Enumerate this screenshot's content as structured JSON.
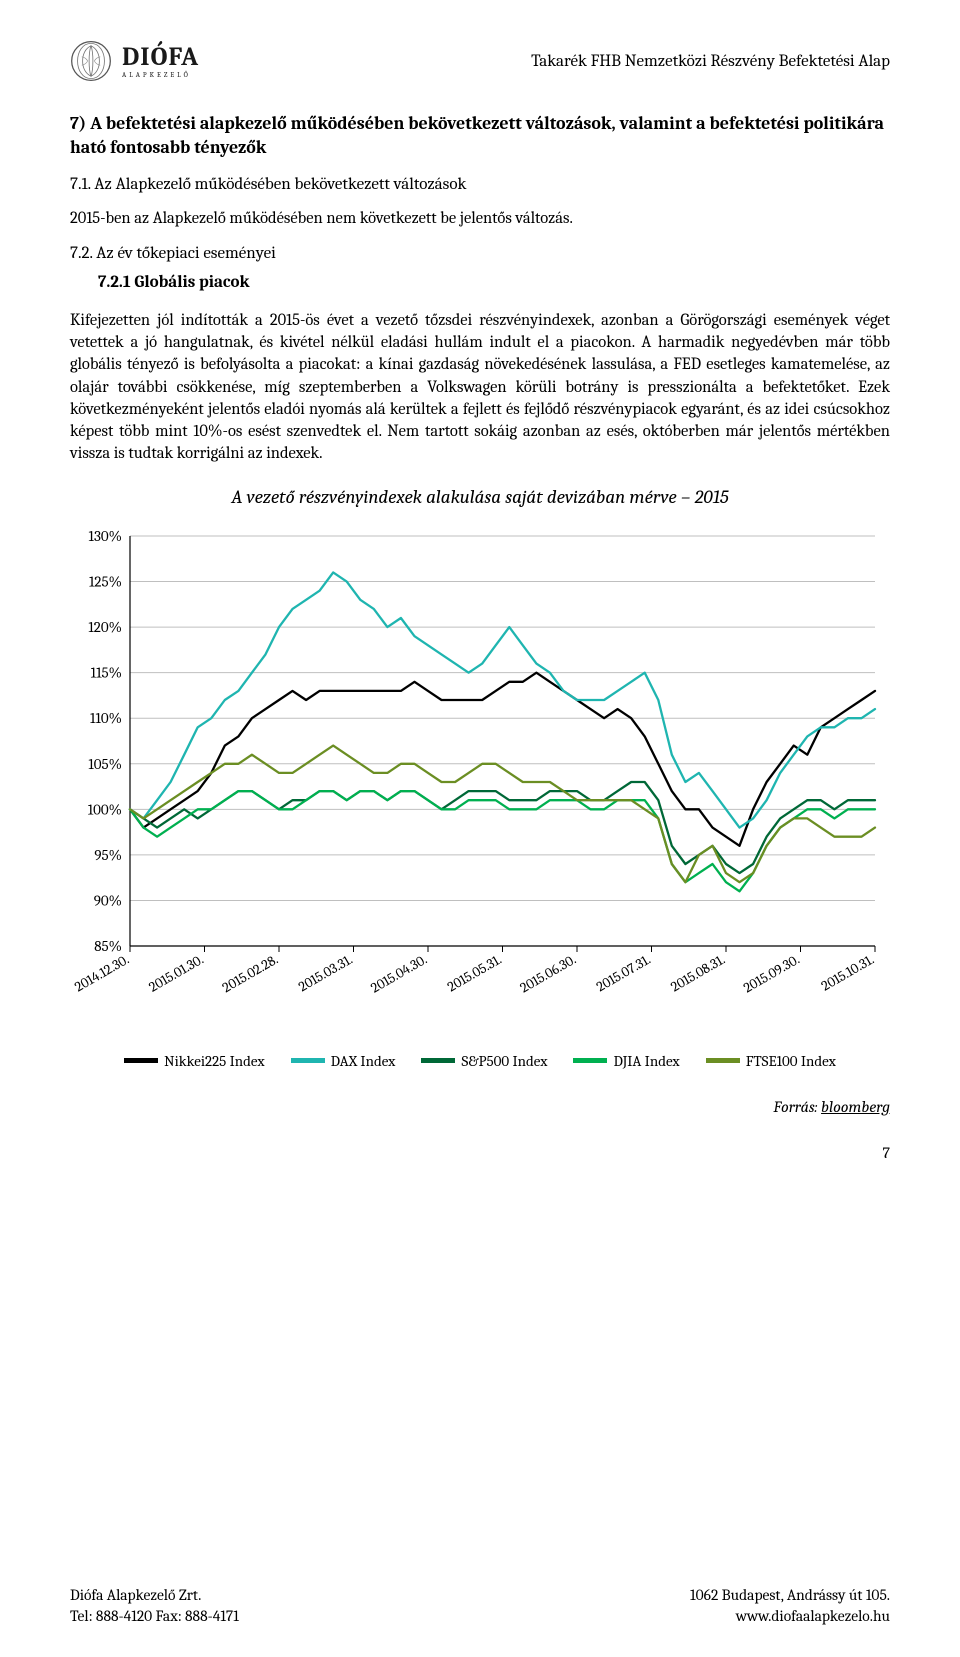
{
  "header": {
    "logo_main": "DIÓFA",
    "logo_sub": "ALAPKEZELŐ",
    "doc_title": "Takarék FHB Nemzetközi Részvény Befektetési Alap"
  },
  "sections": {
    "sec7_heading": "7) A befektetési alapkezelő működésében bekövetkezett változások, valamint a befektetési politikára ható fontosabb tényezők",
    "sec71_heading": "7.1. Az Alapkezelő működésében bekövetkezett változások",
    "sec71_body": "2015-ben az Alapkezelő működésében nem következett be jelentős változás.",
    "sec72_heading": "7.2. Az év tőkepiaci eseményei",
    "sec721_heading": "7.2.1 Globális piacok",
    "sec721_body": "Kifejezetten jól indították a 2015-ös évet a vezető tőzsdei részvényindexek, azonban a Görögországi események véget vetettek a jó hangulatnak, és kivétel nélkül eladási hullám indult el a piacokon. A harmadik negyedévben már több globális tényező is befolyásolta a piacokat: a kínai gazdaság növekedésének lassulása, a FED esetleges kamatemelése, az olajár további csökkenése, míg szeptemberben a Volkswagen körüli botrány is presszionálta a befektetőket. Ezek következményeként jelentős eladói nyomás alá kerültek a fejlett és fejlődő részvénypiacok egyaránt, és az idei csúcsokhoz képest több mint 10%-os esést szenvedtek el. Nem tartott sokáig azonban az esés, októberben már jelentős mértékben vissza is tudtak korrigálni az indexek."
  },
  "chart": {
    "title": "A vezető részvényindexek alakulása saját devizában mérve – 2015",
    "type": "line",
    "ylim": [
      85,
      130
    ],
    "ytick_step": 5,
    "ytick_format": "percent",
    "yticks": [
      "85%",
      "90%",
      "95%",
      "100%",
      "105%",
      "110%",
      "115%",
      "120%",
      "125%",
      "130%"
    ],
    "x_labels": [
      "2014.12.30.",
      "2015.01.30.",
      "2015.02.28.",
      "2015.03.31.",
      "2015.04.30.",
      "2015.05.31.",
      "2015.06.30.",
      "2015.07.31.",
      "2015.08.31.",
      "2015.09.30.",
      "2015.10.31."
    ],
    "x_label_rotation_deg": -30,
    "grid_color": "#bfbfbf",
    "axis_color": "#000000",
    "background_color": "#ffffff",
    "line_width": 2.3,
    "series": [
      {
        "name": "Nikkei225 Index",
        "color": "#000000",
        "values": [
          100,
          98,
          99,
          100,
          101,
          102,
          104,
          107,
          108,
          110,
          111,
          112,
          113,
          112,
          113,
          113,
          113,
          113,
          113,
          113,
          113,
          114,
          113,
          112,
          112,
          112,
          112,
          113,
          114,
          114,
          115,
          114,
          113,
          112,
          111,
          110,
          111,
          110,
          108,
          105,
          102,
          100,
          100,
          98,
          97,
          96,
          100,
          103,
          105,
          107,
          106,
          109,
          110,
          111,
          112,
          113
        ]
      },
      {
        "name": "DAX Index",
        "color": "#1fb5b0",
        "values": [
          100,
          99,
          101,
          103,
          106,
          109,
          110,
          112,
          113,
          115,
          117,
          120,
          122,
          123,
          124,
          126,
          125,
          123,
          122,
          120,
          121,
          119,
          118,
          117,
          116,
          115,
          116,
          118,
          120,
          118,
          116,
          115,
          113,
          112,
          112,
          112,
          113,
          114,
          115,
          112,
          106,
          103,
          104,
          102,
          100,
          98,
          99,
          101,
          104,
          106,
          108,
          109,
          109,
          110,
          110,
          111
        ]
      },
      {
        "name": "S&P500 Index",
        "color": "#006837",
        "values": [
          100,
          99,
          98,
          99,
          100,
          99,
          100,
          101,
          102,
          102,
          101,
          100,
          101,
          101,
          102,
          102,
          101,
          102,
          102,
          101,
          102,
          102,
          101,
          100,
          101,
          102,
          102,
          102,
          101,
          101,
          101,
          102,
          102,
          102,
          101,
          101,
          102,
          103,
          103,
          101,
          96,
          94,
          95,
          96,
          94,
          93,
          94,
          97,
          99,
          100,
          101,
          101,
          100,
          101,
          101,
          101
        ]
      },
      {
        "name": "DJIA Index",
        "color": "#00b050",
        "values": [
          100,
          98,
          97,
          98,
          99,
          100,
          100,
          101,
          102,
          102,
          101,
          100,
          100,
          101,
          102,
          102,
          101,
          102,
          102,
          101,
          102,
          102,
          101,
          100,
          100,
          101,
          101,
          101,
          100,
          100,
          100,
          101,
          101,
          101,
          100,
          100,
          101,
          101,
          101,
          99,
          94,
          92,
          93,
          94,
          92,
          91,
          93,
          96,
          98,
          99,
          100,
          100,
          99,
          100,
          100,
          100
        ]
      },
      {
        "name": "FTSE100 Index",
        "color": "#6b8e23",
        "values": [
          100,
          99,
          100,
          101,
          102,
          103,
          104,
          105,
          105,
          106,
          105,
          104,
          104,
          105,
          106,
          107,
          106,
          105,
          104,
          104,
          105,
          105,
          104,
          103,
          103,
          104,
          105,
          105,
          104,
          103,
          103,
          103,
          102,
          101,
          101,
          101,
          101,
          101,
          100,
          99,
          94,
          92,
          95,
          96,
          93,
          92,
          93,
          96,
          98,
          99,
          99,
          98,
          97,
          97,
          97,
          98
        ]
      }
    ],
    "source_prefix": "Forrás: ",
    "source_link": "bloomberg"
  },
  "page_number": "7",
  "footer": {
    "left_line1": "Diófa Alapkezelő Zrt.",
    "left_line2": "Tel: 888-4120   Fax: 888-4171",
    "right_line1": "1062 Budapest, Andrássy út 105.",
    "right_line2": "www.diofaalapkezelo.hu"
  }
}
